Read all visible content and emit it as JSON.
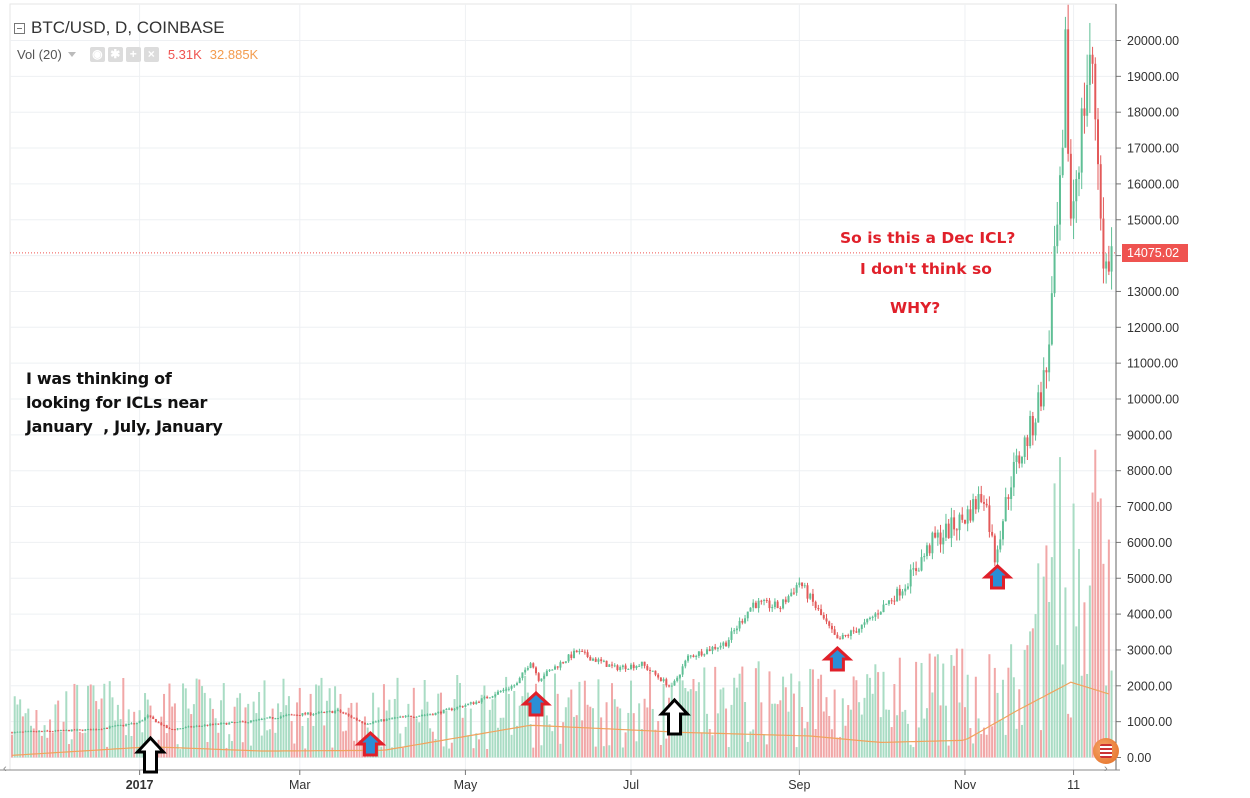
{
  "header": {
    "title": "BTC/USD, D, COINBASE",
    "vol_label": "Vol (20)",
    "vol_value_1": "5.31K",
    "vol_value_2": "32.885K",
    "last_price": "14075.02"
  },
  "annotations": {
    "left_note": [
      "I was thinking of",
      "looking for ICLs near",
      "January  , July, January"
    ],
    "question_1": "So is this a Dec ICL?",
    "question_2": "I don't think so",
    "question_3": "WHY?"
  },
  "colors": {
    "up": "#5fbf95",
    "down": "#e35a5a",
    "vol_up": "#a9dcc4",
    "vol_down": "#f1a7a7",
    "ma": "#f0a35e",
    "arrow_red": "#e0202a",
    "arrow_blue": "#2b8fd6",
    "price_line": "#ef5350"
  },
  "chart_data": {
    "type": "candlestick",
    "title": "BTC/USD, D, COINBASE",
    "y_axis": {
      "range": [
        0,
        20000
      ],
      "ticks": [
        "0.00",
        "1000.00",
        "2000.00",
        "3000.00",
        "4000.00",
        "5000.00",
        "6000.00",
        "7000.00",
        "8000.00",
        "9000.00",
        "10000.00",
        "11000.00",
        "12000.00",
        "13000.00",
        "14000.00",
        "15000.00",
        "16000.00",
        "17000.00",
        "18000.00",
        "19000.00",
        "20000.00"
      ],
      "position": "right"
    },
    "x_axis": {
      "ticks": [
        {
          "label": "2017",
          "date": "2017-01-01",
          "bold": true
        },
        {
          "label": "Mar",
          "date": "2017-03-01"
        },
        {
          "label": "May",
          "date": "2017-05-01"
        },
        {
          "label": "Jul",
          "date": "2017-07-01"
        },
        {
          "label": "Sep",
          "date": "2017-09-01"
        },
        {
          "label": "Nov",
          "date": "2017-11-01"
        },
        {
          "label": "11",
          "date": "2017-12-11"
        }
      ],
      "range": [
        "2016-11-15",
        "2017-12-20"
      ]
    },
    "last_price": 14075.02,
    "price_series": [
      [
        "2016-11-15",
        700
      ],
      [
        "2016-12-01",
        740
      ],
      [
        "2016-12-15",
        780
      ],
      [
        "2016-12-31",
        960
      ],
      [
        "2017-01-04",
        1150
      ],
      [
        "2017-01-12",
        780
      ],
      [
        "2017-01-25",
        900
      ],
      [
        "2017-02-10",
        1000
      ],
      [
        "2017-02-25",
        1180
      ],
      [
        "2017-03-10",
        1250
      ],
      [
        "2017-03-15",
        1300
      ],
      [
        "2017-03-25",
        950
      ],
      [
        "2017-04-05",
        1100
      ],
      [
        "2017-04-20",
        1230
      ],
      [
        "2017-05-05",
        1550
      ],
      [
        "2017-05-20",
        2050
      ],
      [
        "2017-05-25",
        2700
      ],
      [
        "2017-05-28",
        2200
      ],
      [
        "2017-06-11",
        2950
      ],
      [
        "2017-06-25",
        2500
      ],
      [
        "2017-07-05",
        2600
      ],
      [
        "2017-07-16",
        1950
      ],
      [
        "2017-07-22",
        2800
      ],
      [
        "2017-08-05",
        3200
      ],
      [
        "2017-08-15",
        4300
      ],
      [
        "2017-08-25",
        4200
      ],
      [
        "2017-09-01",
        4900
      ],
      [
        "2017-09-15",
        3250
      ],
      [
        "2017-09-25",
        3700
      ],
      [
        "2017-10-10",
        4800
      ],
      [
        "2017-10-20",
        6000
      ],
      [
        "2017-11-01",
        6700
      ],
      [
        "2017-11-08",
        7400
      ],
      [
        "2017-11-12",
        5600
      ],
      [
        "2017-11-18",
        7800
      ],
      [
        "2017-11-26",
        9300
      ],
      [
        "2017-12-01",
        10800
      ],
      [
        "2017-12-07",
        16500
      ],
      [
        "2017-12-08",
        19500
      ],
      [
        "2017-12-10",
        15000
      ],
      [
        "2017-12-17",
        19600
      ],
      [
        "2017-12-19",
        18000
      ],
      [
        "2017-12-21",
        15500
      ],
      [
        "2017-12-22",
        13500
      ],
      [
        "2017-12-25",
        14075
      ]
    ],
    "volume_ma": [
      [
        "2016-11-15",
        60
      ],
      [
        "2017-01-05",
        300
      ],
      [
        "2017-02-15",
        180
      ],
      [
        "2017-04-01",
        200
      ],
      [
        "2017-05-25",
        900
      ],
      [
        "2017-07-20",
        700
      ],
      [
        "2017-09-05",
        600
      ],
      [
        "2017-10-01",
        420
      ],
      [
        "2017-11-01",
        480
      ],
      [
        "2017-11-20",
        1300
      ],
      [
        "2017-12-10",
        2100
      ],
      [
        "2017-12-25",
        1750
      ]
    ],
    "markers": [
      {
        "date": "2017-01-05",
        "style": "outline"
      },
      {
        "date": "2017-03-27",
        "style": "blue"
      },
      {
        "date": "2017-05-27",
        "style": "blue"
      },
      {
        "date": "2017-07-17",
        "style": "outline"
      },
      {
        "date": "2017-09-15",
        "style": "blue"
      },
      {
        "date": "2017-11-13",
        "style": "blue"
      }
    ]
  }
}
